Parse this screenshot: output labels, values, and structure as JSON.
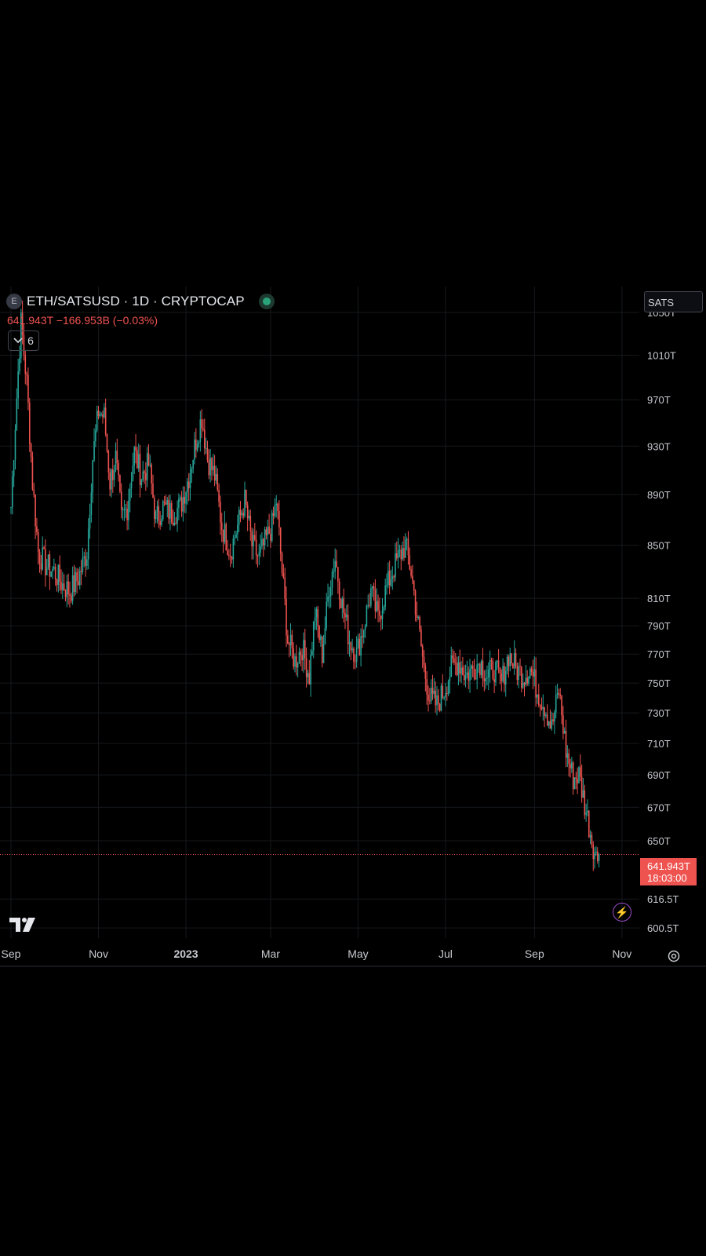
{
  "header": {
    "symbol_badge": "E",
    "title": "ETH/SATSUSD · 1D · CRYPTOCAP",
    "price_change": "641.943T  −166.953B (−0.03%)",
    "indicator_count": "6",
    "currency": "SATS"
  },
  "last_price": {
    "value": "641.943T",
    "countdown": "18:03:00"
  },
  "colors": {
    "up": "#26a69a",
    "down": "#ef5350",
    "grid": "#16181d",
    "axis_text": "#c8cad0",
    "background": "#000000"
  },
  "icons": {
    "logo": "tradingview-logo-icon",
    "bolt": "lightning-bolt-icon",
    "settings": "gear-icon",
    "chevron": "chevron-down-icon"
  },
  "chart_data": {
    "type": "candlestick",
    "title": "ETH/SATSUSD · 1D · CRYPTOCAP",
    "xlabel": "",
    "ylabel": "",
    "grid": true,
    "y_axis": {
      "scale": "log",
      "range": [
        595,
        1075
      ],
      "ticks": [
        "1050T",
        "1010T",
        "970T",
        "930T",
        "890T",
        "850T",
        "810T",
        "790T",
        "770T",
        "750T",
        "730T",
        "710T",
        "690T",
        "670T",
        "650T",
        "616.5T",
        "600.5T"
      ],
      "tick_values": [
        1050,
        1010,
        970,
        930,
        890,
        850,
        810,
        790,
        770,
        750,
        730,
        710,
        690,
        670,
        650,
        616.5,
        600.5
      ]
    },
    "x_axis": {
      "range": [
        "2022-09-01",
        "2023-10-31"
      ],
      "ticks": [
        "Sep",
        "Nov",
        "2023",
        "Mar",
        "May",
        "Jul",
        "Sep",
        "Nov"
      ],
      "tick_dates": [
        "2022-09-01",
        "2022-11-01",
        "2023-01-01",
        "2023-03-01",
        "2023-05-01",
        "2023-07-01",
        "2023-09-01",
        "2023-11-01"
      ]
    },
    "series_close": [
      [
        "2022-09-01",
        880
      ],
      [
        "2022-09-04",
        950
      ],
      [
        "2022-09-08",
        1040
      ],
      [
        "2022-09-12",
        985
      ],
      [
        "2022-09-16",
        900
      ],
      [
        "2022-09-20",
        845
      ],
      [
        "2022-09-25",
        835
      ],
      [
        "2022-10-01",
        830
      ],
      [
        "2022-10-07",
        820
      ],
      [
        "2022-10-12",
        815
      ],
      [
        "2022-10-18",
        825
      ],
      [
        "2022-10-24",
        845
      ],
      [
        "2022-10-28",
        920
      ],
      [
        "2022-11-01",
        960
      ],
      [
        "2022-11-05",
        955
      ],
      [
        "2022-11-09",
        900
      ],
      [
        "2022-11-13",
        920
      ],
      [
        "2022-11-17",
        870
      ],
      [
        "2022-11-21",
        880
      ],
      [
        "2022-11-26",
        925
      ],
      [
        "2022-12-01",
        905
      ],
      [
        "2022-12-06",
        915
      ],
      [
        "2022-12-11",
        870
      ],
      [
        "2022-12-16",
        880
      ],
      [
        "2022-12-22",
        875
      ],
      [
        "2022-12-28",
        880
      ],
      [
        "2023-01-03",
        905
      ],
      [
        "2023-01-08",
        935
      ],
      [
        "2023-01-12",
        955
      ],
      [
        "2023-01-16",
        920
      ],
      [
        "2023-01-21",
        905
      ],
      [
        "2023-01-26",
        865
      ],
      [
        "2023-02-01",
        845
      ],
      [
        "2023-02-06",
        865
      ],
      [
        "2023-02-11",
        885
      ],
      [
        "2023-02-16",
        850
      ],
      [
        "2023-02-21",
        840
      ],
      [
        "2023-02-26",
        855
      ],
      [
        "2023-03-02",
        865
      ],
      [
        "2023-03-05",
        885
      ],
      [
        "2023-03-09",
        830
      ],
      [
        "2023-03-13",
        780
      ],
      [
        "2023-03-18",
        765
      ],
      [
        "2023-03-23",
        775
      ],
      [
        "2023-03-28",
        755
      ],
      [
        "2023-04-01",
        800
      ],
      [
        "2023-04-06",
        770
      ],
      [
        "2023-04-11",
        820
      ],
      [
        "2023-04-15",
        840
      ],
      [
        "2023-04-20",
        805
      ],
      [
        "2023-04-25",
        780
      ],
      [
        "2023-04-30",
        770
      ],
      [
        "2023-05-05",
        790
      ],
      [
        "2023-05-10",
        815
      ],
      [
        "2023-05-15",
        795
      ],
      [
        "2023-05-20",
        815
      ],
      [
        "2023-05-25",
        830
      ],
      [
        "2023-05-29",
        840
      ],
      [
        "2023-06-03",
        850
      ],
      [
        "2023-06-07",
        830
      ],
      [
        "2023-06-12",
        790
      ],
      [
        "2023-06-16",
        760
      ],
      [
        "2023-06-20",
        740
      ],
      [
        "2023-06-25",
        735
      ],
      [
        "2023-06-30",
        745
      ],
      [
        "2023-07-05",
        760
      ],
      [
        "2023-07-10",
        765
      ],
      [
        "2023-07-15",
        755
      ],
      [
        "2023-07-20",
        760
      ],
      [
        "2023-07-25",
        765
      ],
      [
        "2023-07-30",
        755
      ],
      [
        "2023-08-04",
        760
      ],
      [
        "2023-08-09",
        750
      ],
      [
        "2023-08-14",
        770
      ],
      [
        "2023-08-19",
        760
      ],
      [
        "2023-08-24",
        755
      ],
      [
        "2023-08-29",
        760
      ],
      [
        "2023-09-03",
        745
      ],
      [
        "2023-09-08",
        735
      ],
      [
        "2023-09-13",
        720
      ],
      [
        "2023-09-18",
        745
      ],
      [
        "2023-09-23",
        705
      ],
      [
        "2023-09-28",
        688
      ],
      [
        "2023-10-02",
        690
      ],
      [
        "2023-10-06",
        672
      ],
      [
        "2023-10-10",
        655
      ],
      [
        "2023-10-14",
        640
      ],
      [
        "2023-10-16",
        642
      ]
    ],
    "last_value": 641.943
  }
}
